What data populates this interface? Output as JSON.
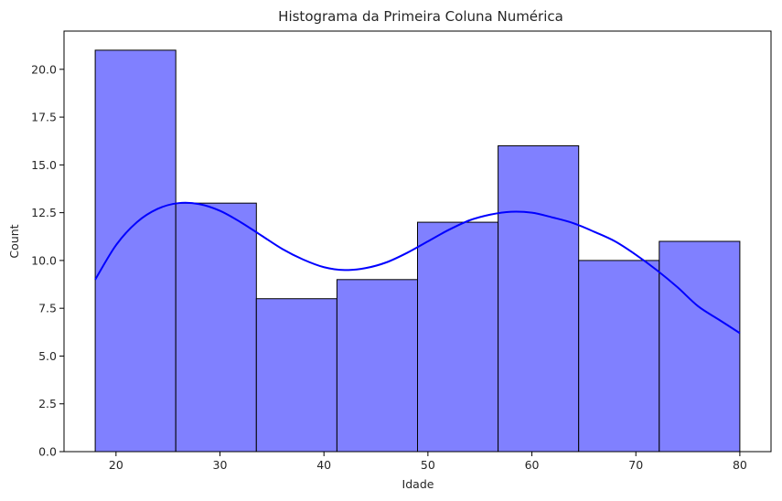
{
  "chart_data": {
    "type": "bar",
    "subtype": "histogram-with-kde",
    "title": "Histograma da Primeira Coluna Numérica",
    "xlabel": "Idade",
    "ylabel": "Count",
    "xlim": [
      15,
      83
    ],
    "ylim": [
      0,
      22
    ],
    "xticks": [
      20,
      30,
      40,
      50,
      60,
      70,
      80
    ],
    "yticks": [
      0.0,
      2.5,
      5.0,
      7.5,
      10.0,
      12.5,
      15.0,
      17.5,
      20.0
    ],
    "bins": [
      {
        "start": 18.0,
        "end": 25.75,
        "count": 21
      },
      {
        "start": 25.75,
        "end": 33.5,
        "count": 13
      },
      {
        "start": 33.5,
        "end": 41.25,
        "count": 8
      },
      {
        "start": 41.25,
        "end": 49.0,
        "count": 9
      },
      {
        "start": 49.0,
        "end": 56.75,
        "count": 12
      },
      {
        "start": 56.75,
        "end": 64.5,
        "count": 16
      },
      {
        "start": 64.5,
        "end": 72.25,
        "count": 10
      },
      {
        "start": 72.25,
        "end": 80.0,
        "count": 11
      }
    ],
    "kde": {
      "x": [
        18,
        20,
        22,
        24,
        26,
        28,
        30,
        32,
        34,
        36,
        38,
        40,
        42,
        44,
        46,
        48,
        50,
        52,
        54,
        56,
        58,
        60,
        62,
        64,
        66,
        68,
        70,
        72,
        74,
        76,
        78,
        80
      ],
      "y": [
        9.0,
        10.8,
        12.0,
        12.7,
        13.0,
        12.95,
        12.6,
        12.0,
        11.3,
        10.6,
        10.05,
        9.65,
        9.5,
        9.6,
        9.9,
        10.4,
        11.0,
        11.6,
        12.1,
        12.4,
        12.55,
        12.5,
        12.25,
        11.95,
        11.5,
        11.0,
        10.3,
        9.5,
        8.6,
        7.6,
        6.9,
        6.2
      ]
    },
    "bar_color": "#8080ff",
    "bar_edge_color": "#000000",
    "kde_color": "#0000ff",
    "grid": false,
    "legend": "none"
  }
}
